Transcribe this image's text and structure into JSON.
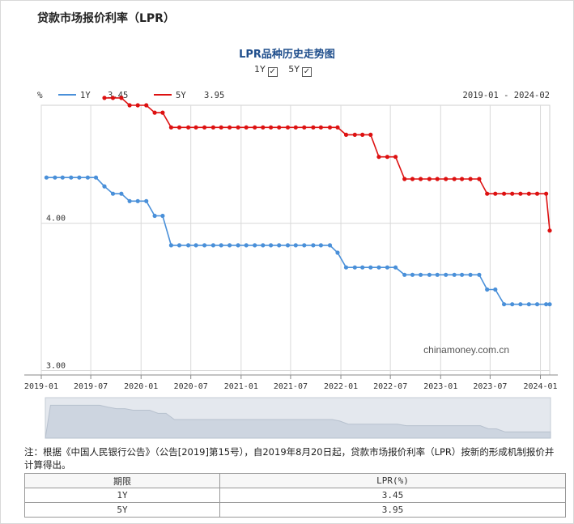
{
  "page_title": "贷款市场报价利率（LPR）",
  "toggles": [
    {
      "label": "1Y",
      "checked": true
    },
    {
      "label": "5Y",
      "checked": true
    }
  ],
  "colors": {
    "series_1y": "#4a90d9",
    "series_5y": "#dd1111",
    "grid": "#d9d9d9"
  },
  "chart_data": {
    "type": "line",
    "title": "LPR品种历史走势图",
    "y_unit_label": "%",
    "date_range": "2019-01 - 2024-02",
    "watermark": "chinamoney.com.cn",
    "x_ticks": [
      "2019-01",
      "2019-07",
      "2020-01",
      "2020-07",
      "2021-01",
      "2021-07",
      "2022-01",
      "2022-07",
      "2023-01",
      "2023-07",
      "2024-01"
    ],
    "y_ticks": [
      {
        "value": 4.0,
        "label": "4.00"
      },
      {
        "value": 3.0,
        "label": "3.00"
      }
    ],
    "ylim": [
      2.97,
      4.8
    ],
    "x_start": "2019-01-01",
    "x_end": "2024-02-04",
    "grid": true,
    "legend_position": "top-left",
    "series": [
      {
        "name": "1Y",
        "legend_value": "3.45",
        "points": [
          [
            "2019-01-20",
            4.31
          ],
          [
            "2019-02-20",
            4.31
          ],
          [
            "2019-03-20",
            4.31
          ],
          [
            "2019-04-20",
            4.31
          ],
          [
            "2019-05-20",
            4.31
          ],
          [
            "2019-06-20",
            4.31
          ],
          [
            "2019-07-20",
            4.31
          ],
          [
            "2019-08-20",
            4.25
          ],
          [
            "2019-09-20",
            4.2
          ],
          [
            "2019-10-21",
            4.2
          ],
          [
            "2019-11-20",
            4.15
          ],
          [
            "2019-12-20",
            4.15
          ],
          [
            "2020-01-20",
            4.15
          ],
          [
            "2020-02-20",
            4.05
          ],
          [
            "2020-03-20",
            4.05
          ],
          [
            "2020-04-20",
            3.85
          ],
          [
            "2020-05-20",
            3.85
          ],
          [
            "2020-06-22",
            3.85
          ],
          [
            "2020-07-20",
            3.85
          ],
          [
            "2020-08-20",
            3.85
          ],
          [
            "2020-09-21",
            3.85
          ],
          [
            "2020-10-20",
            3.85
          ],
          [
            "2020-11-20",
            3.85
          ],
          [
            "2020-12-21",
            3.85
          ],
          [
            "2021-01-20",
            3.85
          ],
          [
            "2021-02-20",
            3.85
          ],
          [
            "2021-03-22",
            3.85
          ],
          [
            "2021-04-20",
            3.85
          ],
          [
            "2021-05-20",
            3.85
          ],
          [
            "2021-06-21",
            3.85
          ],
          [
            "2021-07-20",
            3.85
          ],
          [
            "2021-08-20",
            3.85
          ],
          [
            "2021-09-22",
            3.85
          ],
          [
            "2021-10-20",
            3.85
          ],
          [
            "2021-11-22",
            3.85
          ],
          [
            "2021-12-20",
            3.8
          ],
          [
            "2022-01-20",
            3.7
          ],
          [
            "2022-02-21",
            3.7
          ],
          [
            "2022-03-21",
            3.7
          ],
          [
            "2022-04-20",
            3.7
          ],
          [
            "2022-05-20",
            3.7
          ],
          [
            "2022-06-20",
            3.7
          ],
          [
            "2022-07-20",
            3.7
          ],
          [
            "2022-08-22",
            3.65
          ],
          [
            "2022-09-20",
            3.65
          ],
          [
            "2022-10-20",
            3.65
          ],
          [
            "2022-11-21",
            3.65
          ],
          [
            "2022-12-20",
            3.65
          ],
          [
            "2023-01-20",
            3.65
          ],
          [
            "2023-02-20",
            3.65
          ],
          [
            "2023-03-20",
            3.65
          ],
          [
            "2023-04-20",
            3.65
          ],
          [
            "2023-05-22",
            3.65
          ],
          [
            "2023-06-20",
            3.55
          ],
          [
            "2023-07-20",
            3.55
          ],
          [
            "2023-08-21",
            3.45
          ],
          [
            "2023-09-20",
            3.45
          ],
          [
            "2023-10-20",
            3.45
          ],
          [
            "2023-11-20",
            3.45
          ],
          [
            "2023-12-20",
            3.45
          ],
          [
            "2024-01-22",
            3.45
          ],
          [
            "2024-02-04",
            3.45
          ]
        ]
      },
      {
        "name": "5Y",
        "legend_value": "3.95",
        "points": [
          [
            "2019-08-20",
            4.85
          ],
          [
            "2019-09-20",
            4.85
          ],
          [
            "2019-10-21",
            4.85
          ],
          [
            "2019-11-20",
            4.8
          ],
          [
            "2019-12-20",
            4.8
          ],
          [
            "2020-01-20",
            4.8
          ],
          [
            "2020-02-20",
            4.75
          ],
          [
            "2020-03-20",
            4.75
          ],
          [
            "2020-04-20",
            4.65
          ],
          [
            "2020-05-20",
            4.65
          ],
          [
            "2020-06-22",
            4.65
          ],
          [
            "2020-07-20",
            4.65
          ],
          [
            "2020-08-20",
            4.65
          ],
          [
            "2020-09-21",
            4.65
          ],
          [
            "2020-10-20",
            4.65
          ],
          [
            "2020-11-20",
            4.65
          ],
          [
            "2020-12-21",
            4.65
          ],
          [
            "2021-01-20",
            4.65
          ],
          [
            "2021-02-20",
            4.65
          ],
          [
            "2021-03-22",
            4.65
          ],
          [
            "2021-04-20",
            4.65
          ],
          [
            "2021-05-20",
            4.65
          ],
          [
            "2021-06-21",
            4.65
          ],
          [
            "2021-07-20",
            4.65
          ],
          [
            "2021-08-20",
            4.65
          ],
          [
            "2021-09-22",
            4.65
          ],
          [
            "2021-10-20",
            4.65
          ],
          [
            "2021-11-22",
            4.65
          ],
          [
            "2021-12-20",
            4.65
          ],
          [
            "2022-01-20",
            4.6
          ],
          [
            "2022-02-21",
            4.6
          ],
          [
            "2022-03-21",
            4.6
          ],
          [
            "2022-04-20",
            4.6
          ],
          [
            "2022-05-20",
            4.45
          ],
          [
            "2022-06-20",
            4.45
          ],
          [
            "2022-07-20",
            4.45
          ],
          [
            "2022-08-22",
            4.3
          ],
          [
            "2022-09-20",
            4.3
          ],
          [
            "2022-10-20",
            4.3
          ],
          [
            "2022-11-21",
            4.3
          ],
          [
            "2022-12-20",
            4.3
          ],
          [
            "2023-01-20",
            4.3
          ],
          [
            "2023-02-20",
            4.3
          ],
          [
            "2023-03-20",
            4.3
          ],
          [
            "2023-04-20",
            4.3
          ],
          [
            "2023-05-22",
            4.3
          ],
          [
            "2023-06-20",
            4.2
          ],
          [
            "2023-07-20",
            4.2
          ],
          [
            "2023-08-21",
            4.2
          ],
          [
            "2023-09-20",
            4.2
          ],
          [
            "2023-10-20",
            4.2
          ],
          [
            "2023-11-20",
            4.2
          ],
          [
            "2023-12-20",
            4.2
          ],
          [
            "2024-01-22",
            4.2
          ],
          [
            "2024-02-04",
            3.95
          ]
        ]
      }
    ]
  },
  "note": "注：根据《中国人民银行公告》（公告[2019]第15号），自2019年8月20日起，贷款市场报价利率（LPR）按新的形成机制报价并计算得出。",
  "table": {
    "headers": [
      "期限",
      "LPR(%)"
    ],
    "rows": [
      {
        "term": "1Y",
        "rate": "3.45"
      },
      {
        "term": "5Y",
        "rate": "3.95"
      }
    ]
  }
}
